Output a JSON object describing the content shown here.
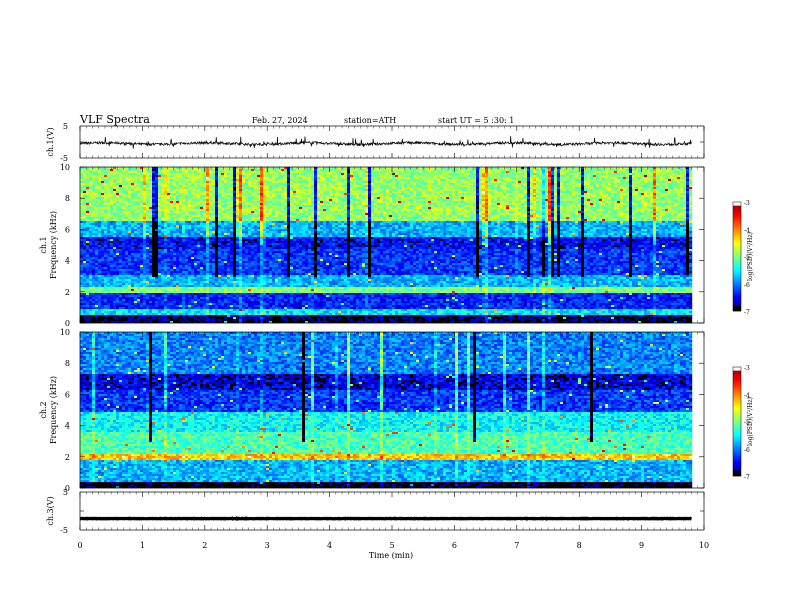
{
  "header": {
    "title": "VLF  Spectra",
    "date": "Feb. 27, 2024",
    "station": "station=ATH",
    "start_ut": "start  UT  =    5  :30: 1"
  },
  "chart_data": [
    {
      "type": "line",
      "ylabel": "ch.1(V)",
      "ylim": [
        -5,
        5
      ],
      "yticks": [
        "5",
        "-5"
      ],
      "series": [
        {
          "color": "#000000",
          "baseline": -0.5,
          "noise": "dense"
        }
      ]
    },
    {
      "type": "heatmap",
      "ylabel": "ch.1\nFrequency  (kHz)",
      "ylim": [
        0,
        10
      ],
      "yticks": [
        "0",
        "2",
        "4",
        "6",
        "8",
        "10"
      ],
      "colorbar": {
        "label": "log(PSD)(V²/Hz)",
        "ticks": [
          "-3",
          "-4",
          "-5",
          "-6",
          "-7"
        ],
        "range": [
          -7,
          -3
        ]
      },
      "bands_khz": [
        {
          "from": 0.0,
          "to": 0.6,
          "level": -6.9
        },
        {
          "from": 0.6,
          "to": 1.0,
          "level": -5.6
        },
        {
          "from": 1.0,
          "to": 2.0,
          "level": -6.4
        },
        {
          "from": 2.0,
          "to": 2.4,
          "level": -5.0
        },
        {
          "from": 2.4,
          "to": 3.2,
          "level": -5.8
        },
        {
          "from": 3.2,
          "to": 4.8,
          "level": -6.3
        },
        {
          "from": 4.8,
          "to": 5.6,
          "level": -6.5
        },
        {
          "from": 5.6,
          "to": 6.6,
          "level": -5.8
        },
        {
          "from": 6.6,
          "to": 10.0,
          "level": -4.9
        }
      ]
    },
    {
      "type": "heatmap",
      "ylabel": "ch.2\nFrequency  (kHz)",
      "ylim": [
        0,
        10
      ],
      "yticks": [
        "0",
        "2",
        "4",
        "6",
        "8",
        "10"
      ],
      "colorbar": {
        "label": "log(PSD)(V²/Hz)",
        "ticks": [
          "-3",
          "-4",
          "-5",
          "-6",
          "-7"
        ],
        "range": [
          -7,
          -3
        ]
      },
      "bands_khz": [
        {
          "from": 0.0,
          "to": 0.5,
          "level": -7.0
        },
        {
          "from": 0.5,
          "to": 1.8,
          "level": -5.8
        },
        {
          "from": 1.8,
          "to": 2.2,
          "level": -4.3
        },
        {
          "from": 2.2,
          "to": 3.6,
          "level": -5.2
        },
        {
          "from": 3.6,
          "to": 5.0,
          "level": -5.5
        },
        {
          "from": 5.0,
          "to": 6.4,
          "level": -6.3
        },
        {
          "from": 6.4,
          "to": 7.4,
          "level": -6.6
        },
        {
          "from": 7.4,
          "to": 10.0,
          "level": -6.0
        }
      ]
    },
    {
      "type": "line",
      "ylabel": "ch.3(V)",
      "ylim": [
        -5,
        5
      ],
      "yticks": [
        "5",
        "-5"
      ],
      "series": [
        {
          "color": "#000000",
          "baseline": -2.0,
          "noise": "flat"
        }
      ]
    }
  ],
  "xaxis": {
    "label": "Time  (min)",
    "range": [
      0,
      10
    ],
    "ticks": [
      "0",
      "1",
      "2",
      "3",
      "4",
      "5",
      "6",
      "7",
      "8",
      "9",
      "10"
    ],
    "data_end_min": 9.8
  }
}
